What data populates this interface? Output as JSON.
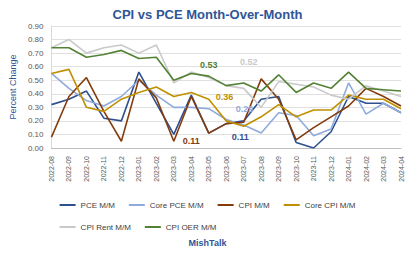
{
  "chart_data": {
    "type": "line",
    "title": "CPI vs PCE Month-Over-Month",
    "y_label": "Percent Change",
    "source": "MishTalk",
    "categories": [
      "2022-08",
      "2022-09",
      "2022-10",
      "2022-11",
      "2022-12",
      "2023-01",
      "2023-02",
      "2023-03",
      "2023-04",
      "2023-05",
      "2023-06",
      "2023-07",
      "2023-08",
      "2023-09",
      "2023-10",
      "2023-11",
      "2023-12",
      "2024-01",
      "2024-02",
      "2024-03",
      "2024-04"
    ],
    "series": [
      {
        "name": "PCE M/M",
        "color": "#2f4f8f",
        "values": [
          0.32,
          0.36,
          0.42,
          0.22,
          0.2,
          0.56,
          0.33,
          0.1,
          0.39,
          0.11,
          0.18,
          0.2,
          0.36,
          0.38,
          0.04,
          0.0,
          0.12,
          0.38,
          0.33,
          0.33,
          0.26
        ]
      },
      {
        "name": "Core PCE M/M",
        "color": "#8faadc",
        "values": [
          0.55,
          0.44,
          0.35,
          0.31,
          0.38,
          0.5,
          0.39,
          0.3,
          0.3,
          0.29,
          0.21,
          0.17,
          0.11,
          0.26,
          0.24,
          0.09,
          0.14,
          0.48,
          0.25,
          0.33,
          0.26
        ]
      },
      {
        "name": "CPI M/M",
        "color": "#843c0c",
        "values": [
          0.08,
          0.38,
          0.52,
          0.27,
          0.05,
          0.51,
          0.37,
          0.05,
          0.38,
          0.11,
          0.18,
          0.19,
          0.51,
          0.36,
          0.06,
          0.15,
          0.23,
          0.31,
          0.44,
          0.38,
          0.31
        ]
      },
      {
        "name": "Core CPI M/M",
        "color": "#bf9000",
        "values": [
          0.55,
          0.58,
          0.3,
          0.27,
          0.36,
          0.41,
          0.45,
          0.38,
          0.41,
          0.36,
          0.2,
          0.16,
          0.23,
          0.32,
          0.23,
          0.28,
          0.28,
          0.39,
          0.36,
          0.36,
          0.29
        ]
      },
      {
        "name": "CPI Rent M/M",
        "color": "#c9c9c9",
        "values": [
          0.74,
          0.8,
          0.7,
          0.74,
          0.76,
          0.7,
          0.76,
          0.48,
          0.56,
          0.52,
          0.46,
          0.44,
          0.3,
          0.49,
          0.47,
          0.45,
          0.39,
          0.36,
          0.46,
          0.42,
          0.38
        ]
      },
      {
        "name": "CPI OER M/M",
        "color": "#548235",
        "values": [
          0.74,
          0.74,
          0.67,
          0.69,
          0.72,
          0.66,
          0.67,
          0.5,
          0.55,
          0.53,
          0.46,
          0.48,
          0.42,
          0.54,
          0.41,
          0.48,
          0.44,
          0.56,
          0.44,
          0.43,
          0.42
        ]
      }
    ],
    "annotations": [
      {
        "text": "0.53",
        "series": "CPI OER M/M",
        "x": "2023-05"
      },
      {
        "text": "0.52",
        "series": "CPI Rent M/M",
        "x": "2023-05"
      },
      {
        "text": "0.36",
        "series": "Core CPI M/M",
        "x": "2023-05"
      },
      {
        "text": "0.29",
        "series": "Core PCE M/M",
        "x": "2023-05"
      },
      {
        "text": "0.11",
        "series": "PCE M/M",
        "x": "2023-05"
      },
      {
        "text": "0.11",
        "series": "CPI M/M",
        "x": "2023-05"
      }
    ],
    "ylim": [
      0,
      0.9
    ],
    "yticks": [
      {
        "value": 0,
        "label": "0.00"
      },
      {
        "value": 0.1,
        "label": "0.10"
      },
      {
        "value": 0.2,
        "label": "0.20"
      },
      {
        "value": 0.3,
        "label": "0.30"
      },
      {
        "value": 0.4,
        "label": "0.40"
      },
      {
        "value": 0.5,
        "label": "0.50"
      },
      {
        "value": 0.6,
        "label": "0.60"
      },
      {
        "value": 0.7,
        "label": "0.70"
      },
      {
        "value": 0.8,
        "label": "0.80"
      },
      {
        "value": 0.9,
        "label": "0.90"
      }
    ],
    "grid": true,
    "legend": "bottom"
  }
}
